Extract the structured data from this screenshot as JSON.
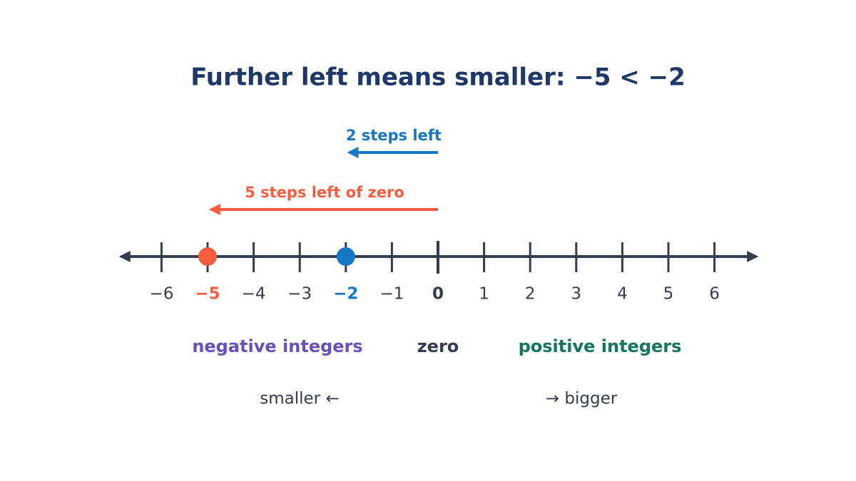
{
  "title": "Further left means smaller:  −5 < −2",
  "number_line": {
    "ticks": [
      {
        "value": -6,
        "label": "−6"
      },
      {
        "value": -5,
        "label": "−5"
      },
      {
        "value": -4,
        "label": "−4"
      },
      {
        "value": -3,
        "label": "−3"
      },
      {
        "value": -2,
        "label": "−2"
      },
      {
        "value": -1,
        "label": "−1"
      },
      0,
      1,
      2,
      3,
      4,
      5,
      6
    ],
    "points": [
      {
        "value": -5,
        "color": "#f45d3f"
      },
      {
        "value": -2,
        "color": "#1677c7"
      }
    ],
    "arrows": [
      {
        "label": "2 steps left",
        "from": 0,
        "to": -2,
        "color": "#1677c7"
      },
      {
        "label": "5 steps left of zero",
        "from": 0,
        "to": -5,
        "color": "#f45d3f"
      }
    ]
  },
  "regions": {
    "negative": "negative integers",
    "zero": "zero",
    "positive": "positive integers"
  },
  "directions": {
    "smaller": "smaller  ←",
    "bigger": "→  bigger"
  }
}
